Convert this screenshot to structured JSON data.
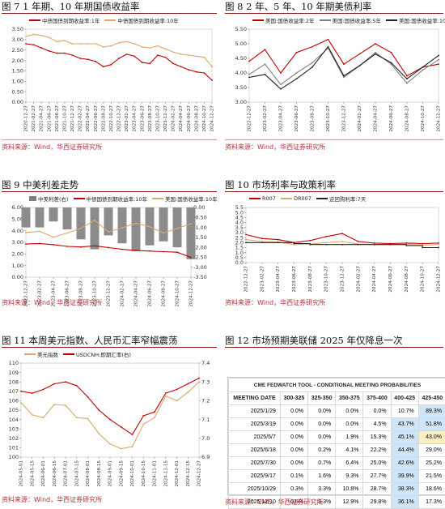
{
  "panels": [
    {
      "title": "图 7 1 年期、10 年期国债收益率",
      "source": "资料来源：Wind，华西证券研究所"
    },
    {
      "title": "图 8 2 年、5 年、10 年期美债利率",
      "source": "资料来源：Wind，华西证券研究所"
    },
    {
      "title": "图 9 中美利差走势",
      "source": "资料来源：Wind，华西证券研究所"
    },
    {
      "title": "图 10 市场利率与政策利率",
      "source": "资料来源：Wind，华西证券研究所"
    },
    {
      "title": "图 11 本周美元指数、人民币汇率窄幅震荡",
      "source": "资料来源：Wind，华西证券研究所"
    },
    {
      "title": "图 12 市场预期美联储 2025 年仅降息一次",
      "source": "资料来源：CME，华西证券研究所"
    }
  ],
  "colors": {
    "red": "#c00000",
    "tan": "#d9a86c",
    "gray": "#7f7f7f",
    "black": "#222222",
    "title_rule": "#8a1a1a"
  },
  "chart_data": [
    {
      "type": "line",
      "title": "",
      "x": [
        "2020-12-27",
        "2021-02-27",
        "2021-04-27",
        "2021-06-27",
        "2021-08-27",
        "2021-10-27",
        "2021-12-27",
        "2022-02-27",
        "2022-04-27",
        "2022-06-27",
        "2022-08-27",
        "2022-10-27",
        "2022-12-27",
        "2023-02-27",
        "2023-04-27",
        "2023-06-27",
        "2023-08-27",
        "2023-10-27",
        "2023-12-27",
        "2024-02-27",
        "2024-04-27",
        "2024-06-27",
        "2024-08-27",
        "2024-10-27",
        "2024-12-27"
      ],
      "ylim": [
        0,
        3.5
      ],
      "yticks": [
        0.0,
        0.5,
        1.0,
        1.5,
        2.0,
        2.5,
        3.0,
        3.5
      ],
      "series": [
        {
          "name": "中债国债到期收益率:1年",
          "color": "red",
          "values": [
            2.8,
            2.75,
            2.6,
            2.45,
            2.35,
            2.35,
            2.25,
            2.1,
            2.05,
            1.95,
            1.7,
            1.8,
            2.1,
            2.3,
            2.2,
            1.9,
            1.85,
            2.25,
            2.15,
            1.85,
            1.7,
            1.55,
            1.45,
            1.4,
            1.05
          ]
        },
        {
          "name": "中债国债到期收益率:10年",
          "color": "tan",
          "values": [
            3.15,
            3.25,
            3.2,
            3.1,
            2.9,
            2.95,
            2.8,
            2.8,
            2.8,
            2.8,
            2.65,
            2.7,
            2.85,
            2.9,
            2.8,
            2.65,
            2.6,
            2.7,
            2.55,
            2.4,
            2.3,
            2.25,
            2.2,
            2.15,
            1.7
          ]
        }
      ]
    },
    {
      "type": "line",
      "title": "",
      "x": [
        "2022-12-27",
        "2023-02-27",
        "2023-04-27",
        "2023-06-27",
        "2023-08-27",
        "2023-10-27",
        "2023-12-27",
        "2024-02-27",
        "2024-04-27",
        "2024-06-27",
        "2024-08-27",
        "2024-10-27",
        "2024-12-27"
      ],
      "ylim": [
        3.0,
        5.5
      ],
      "yticks": [
        3.0,
        3.5,
        4.0,
        4.5,
        5.0,
        5.5
      ],
      "series": [
        {
          "name": "美国:国债收益率:2年",
          "color": "red",
          "values": [
            4.4,
            4.8,
            4.0,
            4.7,
            4.9,
            5.15,
            4.3,
            4.65,
            5.0,
            4.7,
            3.9,
            4.2,
            4.3
          ]
        },
        {
          "name": "美国:国债收益率:5年",
          "color": "gray",
          "values": [
            3.95,
            4.3,
            3.6,
            4.0,
            4.35,
            4.85,
            3.85,
            4.25,
            4.7,
            4.3,
            3.65,
            4.1,
            4.45
          ]
        },
        {
          "name": "美国:国债收益率:10年",
          "color": "black",
          "values": [
            3.85,
            3.95,
            3.45,
            3.8,
            4.2,
            4.9,
            3.9,
            4.25,
            4.65,
            4.35,
            3.8,
            4.2,
            4.6
          ]
        }
      ]
    },
    {
      "type": "line",
      "title": "",
      "x": [
        "2022-12-27",
        "2023-02-27",
        "2023-04-27",
        "2023-06-27",
        "2023-08-27",
        "2023-10-27",
        "2023-12-27",
        "2024-02-27",
        "2024-04-27",
        "2024-06-27",
        "2024-08-27",
        "2024-10-27",
        "2024-12-27"
      ],
      "ylim": [
        0,
        6
      ],
      "yticks": [
        0.0,
        1.0,
        2.0,
        3.0,
        4.0,
        5.0,
        6.0
      ],
      "y2lim": [
        -3.5,
        0
      ],
      "y2ticks": [
        0.0,
        -0.5,
        -1.0,
        -1.5,
        -2.0,
        -2.5,
        -3.0,
        -3.5
      ],
      "series": [
        {
          "name": "中美利差(右)",
          "color": "gray",
          "axis": "right",
          "kind": "bar",
          "values": [
            -1.0,
            -1.0,
            -0.7,
            -1.1,
            -1.6,
            -2.1,
            -1.4,
            -1.8,
            -2.2,
            -1.9,
            -1.7,
            -2.0,
            -2.6
          ]
        },
        {
          "name": "中债国债到期收益率:10年",
          "color": "red",
          "values": [
            2.85,
            2.9,
            2.8,
            2.65,
            2.6,
            2.7,
            2.55,
            2.4,
            2.3,
            2.25,
            2.2,
            2.15,
            1.7
          ]
        },
        {
          "name": "美国:国债收益率:10年",
          "color": "tan",
          "values": [
            3.85,
            3.95,
            3.45,
            3.8,
            4.2,
            4.9,
            3.9,
            4.25,
            4.65,
            4.35,
            3.8,
            4.2,
            4.6
          ]
        }
      ]
    },
    {
      "type": "line",
      "title": "",
      "x": [
        "2022-12-27",
        "2023-02-27",
        "2023-04-27",
        "2023-06-27",
        "2023-08-27",
        "2023-10-27",
        "2023-12-27",
        "2024-02-27",
        "2024-04-27",
        "2024-06-27",
        "2024-08-27",
        "2024-10-27",
        "2024-12-27"
      ],
      "ylim": [
        0,
        5.5
      ],
      "yticks": [
        0.0,
        0.5,
        1.0,
        1.5,
        2.0,
        2.5,
        3.0,
        3.5,
        4.0,
        4.5,
        5.0,
        5.5
      ],
      "series": [
        {
          "name": "R007",
          "color": "red",
          "values": [
            2.8,
            2.4,
            2.3,
            2.0,
            2.2,
            2.6,
            2.9,
            2.1,
            1.95,
            1.9,
            1.95,
            1.9,
            1.95
          ]
        },
        {
          "name": "DR007",
          "color": "tan",
          "values": [
            2.3,
            2.1,
            2.05,
            1.8,
            1.85,
            2.0,
            2.1,
            1.85,
            1.8,
            1.8,
            1.8,
            1.75,
            1.8
          ]
        },
        {
          "name": "逆回购利率:7天",
          "color": "black",
          "kind": "step",
          "values": [
            2.0,
            2.0,
            2.0,
            1.9,
            1.8,
            1.8,
            1.8,
            1.8,
            1.8,
            1.8,
            1.7,
            1.5,
            1.5
          ]
        }
      ]
    },
    {
      "type": "line",
      "title": "",
      "x": [
        "2024-05-01",
        "2024-05-15",
        "2024-06-01",
        "2024-06-15",
        "2024-07-01",
        "2024-07-15",
        "2024-08-01",
        "2024-08-15",
        "2024-09-01",
        "2024-09-15",
        "2024-10-01",
        "2024-10-15",
        "2024-11-01",
        "2024-11-15",
        "2024-12-01",
        "2024-12-15",
        "2024-12-27"
      ],
      "ylim": [
        100,
        110
      ],
      "yticks": [
        100,
        101,
        102,
        103,
        104,
        105,
        106,
        107,
        108,
        109,
        110
      ],
      "y2lim": [
        6.9,
        7.4
      ],
      "y2ticks": [
        6.9,
        7.0,
        7.1,
        7.2,
        7.3,
        7.4
      ],
      "series": [
        {
          "name": "美元指数",
          "color": "tan",
          "values": [
            105.8,
            104.5,
            104.2,
            105.6,
            105.5,
            104.2,
            104.1,
            102.5,
            101.4,
            100.9,
            101.1,
            103.5,
            104.2,
            106.5,
            106.0,
            106.9,
            108.0
          ]
        },
        {
          "name": "USDCNH:即期汇率(右)",
          "color": "red",
          "axis": "right",
          "values": [
            7.25,
            7.24,
            7.26,
            7.29,
            7.3,
            7.28,
            7.22,
            7.15,
            7.1,
            7.06,
            7.02,
            7.12,
            7.14,
            7.24,
            7.26,
            7.29,
            7.32
          ]
        }
      ]
    },
    {
      "type": "table",
      "title": "CME FEDWATCH TOOL - CONDITIONAL MEETING PROBABILITIES",
      "columns": [
        "MEETING DATE",
        "300-325",
        "325-350",
        "350-375",
        "375-400",
        "400-425",
        "425-450"
      ],
      "rows": [
        [
          "2025/1/29",
          "0.0%",
          "0.0%",
          "0.0%",
          "0.0%",
          "10.7%",
          "89.3%"
        ],
        [
          "2025/3/19",
          "0.0%",
          "0.0%",
          "0.0%",
          "4.5%",
          "43.7%",
          "51.8%"
        ],
        [
          "2025/5/7",
          "0.0%",
          "0.0%",
          "1.9%",
          "15.3%",
          "45.1%",
          "43.0%"
        ],
        [
          "2025/6/18",
          "0.0%",
          "0.2%",
          "4.1%",
          "22.2%",
          "44.4%",
          "29.0%"
        ],
        [
          "2025/7/30",
          "0.0%",
          "0.7%",
          "6.4%",
          "25.0%",
          "42.6%",
          "25.2%"
        ],
        [
          "2025/9/17",
          "0.1%",
          "1.6%",
          "9.3%",
          "27.7%",
          "39.9%",
          "21.5%"
        ],
        [
          "2025/10/29",
          "0.3%",
          "3.3%",
          "10.8%",
          "28.7%",
          "38.3%",
          "18.6%"
        ],
        [
          "2025/12/10",
          "0.5%",
          "3.3%",
          "12.9%",
          "29.8%",
          "36.1%",
          "17.3%"
        ]
      ],
      "highlights": [
        [
          0,
          "425-450"
        ],
        [
          1,
          "400-425"
        ],
        [
          1,
          "425-450"
        ],
        [
          2,
          "400-425"
        ],
        [
          2,
          "425-450"
        ],
        [
          3,
          "400-425"
        ],
        [
          4,
          "400-425"
        ],
        [
          5,
          "400-425"
        ],
        [
          6,
          "400-425"
        ],
        [
          7,
          "400-425"
        ]
      ]
    }
  ]
}
